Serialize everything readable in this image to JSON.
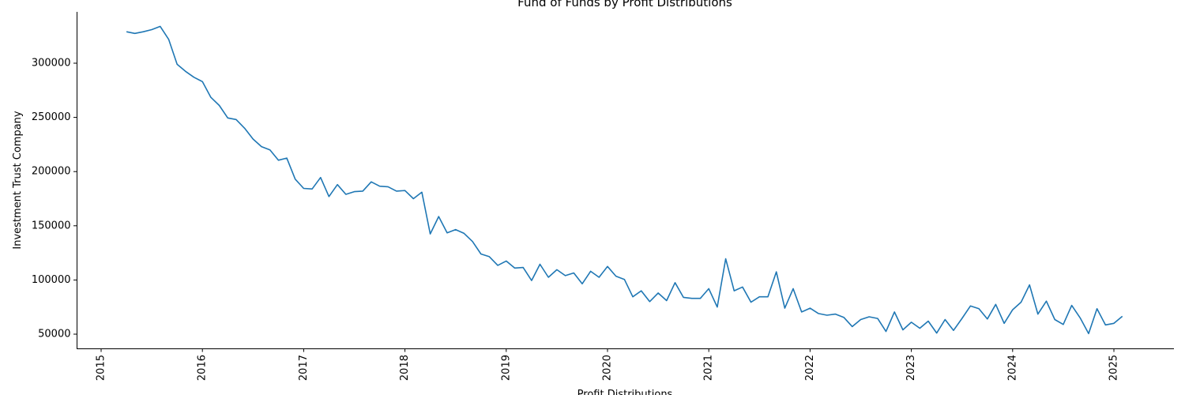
{
  "chart_data": {
    "type": "line",
    "title": "Fund of Funds by Profit Distributions",
    "xlabel": "Profit Distributions",
    "ylabel": "Investment Trust Company",
    "x_ticks": [
      "2015",
      "2016",
      "2017",
      "2018",
      "2019",
      "2020",
      "2021",
      "2022",
      "2023",
      "2024",
      "2025"
    ],
    "y_ticks": [
      "50000",
      "100000",
      "150000",
      "200000",
      "250000",
      "300000"
    ],
    "xlim": [
      "2015-01-01",
      "2025-06-01"
    ],
    "ylim": [
      35000,
      340000
    ],
    "grid": false,
    "color": "#1f77b4",
    "series": [
      {
        "start": "2015-04",
        "values": [
          329000,
          327500,
          329000,
          331000,
          334000,
          322000,
          299000,
          292500,
          287000,
          283000,
          268500,
          261000,
          249500,
          248000,
          240000,
          230000,
          223000,
          220000,
          210500,
          212500,
          193000,
          184500,
          184000,
          194500,
          177000,
          188000,
          179000,
          181500,
          182000,
          190500,
          186500,
          186000,
          182000,
          182500,
          175000,
          181000,
          142500,
          158500,
          143500,
          146500,
          143000,
          135500,
          124000,
          121500,
          113500,
          117500,
          111000,
          111500,
          99500,
          114500,
          102500,
          109500,
          104000,
          106500,
          96500,
          108000,
          102500,
          112500,
          103500,
          100500,
          84500,
          90000,
          80000,
          88000,
          81000,
          97500,
          84000,
          83000,
          83000,
          92000,
          75000,
          119500,
          90000,
          93500,
          79500,
          84500,
          84500,
          107500,
          74000,
          92000,
          70500,
          74000,
          69000,
          67500,
          68500,
          65500,
          57000,
          63500,
          66000,
          64500,
          52500,
          70500,
          54000,
          61000,
          55500,
          62000,
          51000,
          63500,
          53500,
          64500,
          76000,
          73500,
          64000,
          77500,
          60000,
          72500,
          79500,
          95500,
          68500,
          80500,
          63500,
          59000,
          76500,
          65000,
          50500,
          73500,
          58500,
          60000,
          66500
        ]
      }
    ]
  }
}
